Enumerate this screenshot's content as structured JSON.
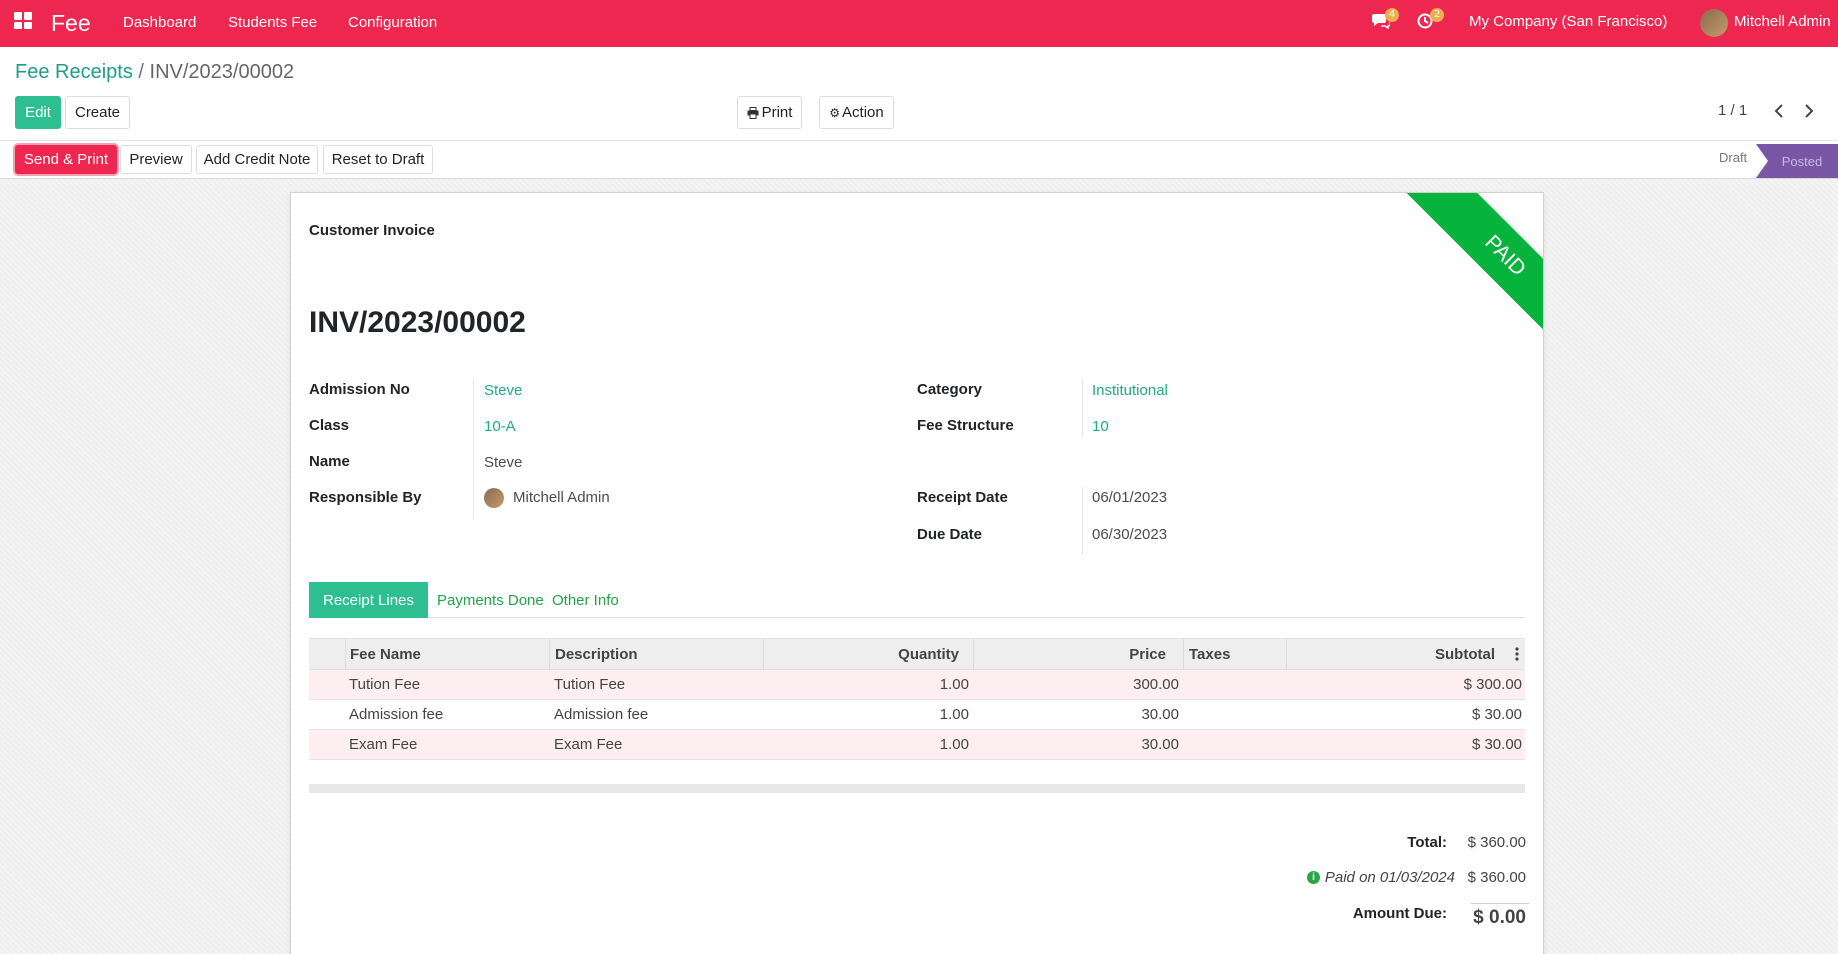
{
  "navbar": {
    "brand": "Fee",
    "menu": [
      "Dashboard",
      "Students Fee",
      "Configuration"
    ],
    "messages_count": "4",
    "activities_count": "2",
    "company": "My Company (San Francisco)",
    "user": "Mitchell Admin",
    "color": "#ee2750"
  },
  "breadcrumb": {
    "parent": "Fee Receipts",
    "separator": "/",
    "current": "INV/2023/00002"
  },
  "buttons": {
    "edit": "Edit",
    "create": "Create",
    "print": "Print",
    "action": "Action",
    "send_print": "Send & Print",
    "preview": "Preview",
    "add_credit_note": "Add Credit Note",
    "reset_to_draft": "Reset to Draft"
  },
  "pager": "1 / 1",
  "status": {
    "states": [
      "Draft",
      "Posted"
    ],
    "current": "Posted"
  },
  "sheet": {
    "ribbon": "PAID",
    "doc_type": "Customer Invoice",
    "title": "INV/2023/00002"
  },
  "fields": {
    "admission_no": {
      "label": "Admission No",
      "value": "Steve"
    },
    "class": {
      "label": "Class",
      "value": "10-A"
    },
    "name": {
      "label": "Name",
      "value": "Steve"
    },
    "responsible": {
      "label": "Responsible By",
      "value": "Mitchell Admin"
    },
    "category": {
      "label": "Category",
      "value": "Institutional"
    },
    "fee_structure": {
      "label": "Fee Structure",
      "value": "10"
    },
    "receipt_date": {
      "label": "Receipt Date",
      "value": "06/01/2023"
    },
    "due_date": {
      "label": "Due Date",
      "value": "06/30/2023"
    }
  },
  "tabs": [
    "Receipt Lines",
    "Payments Done",
    "Other Info"
  ],
  "table": {
    "columns": [
      "Fee Name",
      "Description",
      "Quantity",
      "Price",
      "Taxes",
      "Subtotal"
    ],
    "rows": [
      {
        "fee_name": "Tution Fee",
        "description": "Tution Fee",
        "quantity": "1.00",
        "price": "300.00",
        "taxes": "",
        "subtotal": "$ 300.00"
      },
      {
        "fee_name": "Admission fee",
        "description": "Admission fee",
        "quantity": "1.00",
        "price": "30.00",
        "taxes": "",
        "subtotal": "$ 30.00"
      },
      {
        "fee_name": "Exam Fee",
        "description": "Exam Fee",
        "quantity": "1.00",
        "price": "30.00",
        "taxes": "",
        "subtotal": "$ 30.00"
      }
    ]
  },
  "totals": {
    "total_label": "Total:",
    "total_value": "$ 360.00",
    "paid_on": "Paid on 01/03/2024",
    "paid_value": "$ 360.00",
    "amount_due_label": "Amount Due:",
    "amount_due_value": "$ 0.00"
  }
}
